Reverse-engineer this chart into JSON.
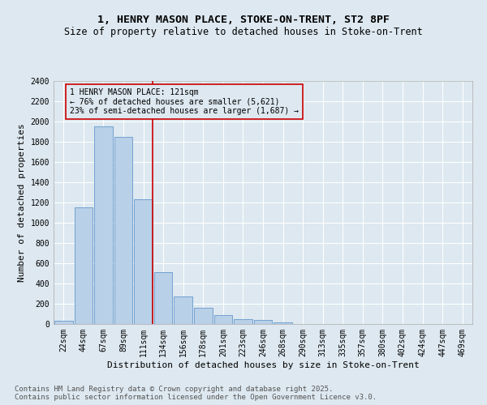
{
  "title1": "1, HENRY MASON PLACE, STOKE-ON-TRENT, ST2 8PF",
  "title2": "Size of property relative to detached houses in Stoke-on-Trent",
  "xlabel": "Distribution of detached houses by size in Stoke-on-Trent",
  "ylabel": "Number of detached properties",
  "categories": [
    "22sqm",
    "44sqm",
    "67sqm",
    "89sqm",
    "111sqm",
    "134sqm",
    "156sqm",
    "178sqm",
    "201sqm",
    "223sqm",
    "246sqm",
    "268sqm",
    "290sqm",
    "313sqm",
    "335sqm",
    "357sqm",
    "380sqm",
    "402sqm",
    "424sqm",
    "447sqm",
    "469sqm"
  ],
  "values": [
    30,
    1150,
    1950,
    1850,
    1230,
    515,
    270,
    160,
    90,
    45,
    40,
    20,
    0,
    0,
    0,
    0,
    0,
    0,
    0,
    0,
    0
  ],
  "bar_color": "#b8d0e8",
  "bar_edge_color": "#6699cc",
  "background_color": "#dde8f0",
  "grid_color": "#ffffff",
  "vline_x_index": 4.45,
  "vline_color": "#cc0000",
  "annotation_text": "1 HENRY MASON PLACE: 121sqm\n← 76% of detached houses are smaller (5,621)\n23% of semi-detached houses are larger (1,687) →",
  "annotation_box_color": "#cc0000",
  "ylim": [
    0,
    2400
  ],
  "yticks": [
    0,
    200,
    400,
    600,
    800,
    1000,
    1200,
    1400,
    1600,
    1800,
    2000,
    2200,
    2400
  ],
  "footer1": "Contains HM Land Registry data © Crown copyright and database right 2025.",
  "footer2": "Contains public sector information licensed under the Open Government Licence v3.0.",
  "title_fontsize": 9.5,
  "subtitle_fontsize": 8.5,
  "axis_label_fontsize": 8,
  "tick_fontsize": 7,
  "annotation_fontsize": 7,
  "footer_fontsize": 6.5
}
